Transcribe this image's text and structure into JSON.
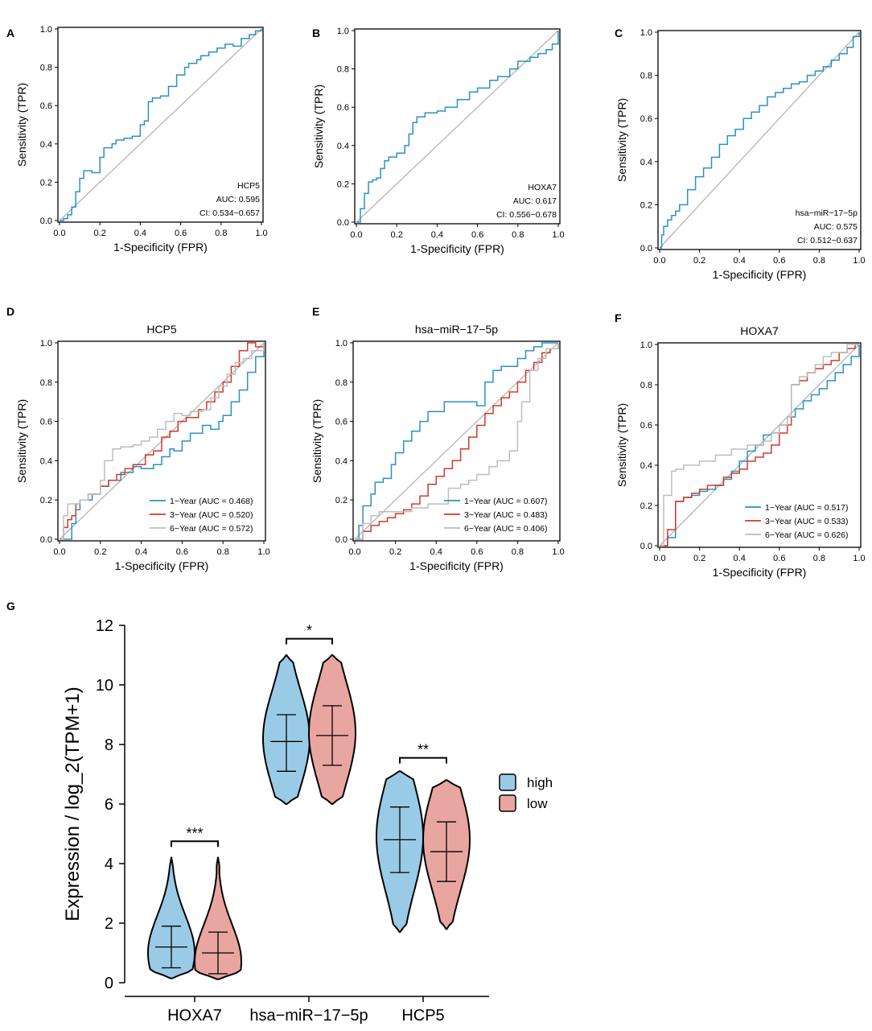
{
  "colors": {
    "blue": "#2a91c8",
    "red": "#d23a2a",
    "gray": "#bdbdbd",
    "diag": "#b5b5b5",
    "violin_high": "#99cbe6",
    "violin_low": "#e9a59f"
  },
  "chart_data": [
    {
      "panel": "A",
      "type": "line",
      "title": "",
      "xlabel": "1-Specificity (FPR)",
      "ylabel": "Sensitivity (TPR)",
      "xlim": [
        0,
        1
      ],
      "ylim": [
        0,
        1
      ],
      "xticks": [
        "0.0",
        "0.2",
        "0.4",
        "0.6",
        "0.8",
        "1.0"
      ],
      "yticks": [
        "0.0",
        "0.2",
        "0.4",
        "0.6",
        "0.8",
        "1.0"
      ],
      "annotation": [
        "HCP5",
        "AUC: 0.595",
        "CI: 0.534−0.657"
      ],
      "legend": [],
      "series": [
        {
          "name": "HCP5",
          "color": "blue",
          "x": [
            0,
            0.02,
            0.04,
            0.06,
            0.08,
            0.1,
            0.12,
            0.14,
            0.16,
            0.2,
            0.22,
            0.26,
            0.28,
            0.32,
            0.36,
            0.4,
            0.42,
            0.44,
            0.46,
            0.5,
            0.54,
            0.58,
            0.62,
            0.64,
            0.68,
            0.7,
            0.74,
            0.78,
            0.82,
            0.86,
            0.9,
            0.94,
            0.97,
            1
          ],
          "y": [
            0,
            0.01,
            0.03,
            0.07,
            0.15,
            0.22,
            0.26,
            0.26,
            0.25,
            0.33,
            0.38,
            0.4,
            0.42,
            0.43,
            0.44,
            0.5,
            0.52,
            0.62,
            0.64,
            0.65,
            0.7,
            0.76,
            0.8,
            0.82,
            0.84,
            0.86,
            0.88,
            0.9,
            0.92,
            0.91,
            0.95,
            0.97,
            0.99,
            1
          ]
        }
      ]
    },
    {
      "panel": "B",
      "type": "line",
      "title": "",
      "xlabel": "1-Specificity (FPR)",
      "ylabel": "Sensitivity (TPR)",
      "xlim": [
        0,
        1
      ],
      "ylim": [
        0,
        1
      ],
      "xticks": [
        "0.0",
        "0.2",
        "0.4",
        "0.6",
        "0.8",
        "1.0"
      ],
      "yticks": [
        "0.0",
        "0.2",
        "0.4",
        "0.6",
        "0.8",
        "1.0"
      ],
      "annotation": [
        "HOXA7",
        "AUC: 0.617",
        "CI: 0.556−0.678"
      ],
      "legend": [],
      "series": [
        {
          "name": "HOXA7",
          "color": "blue",
          "x": [
            0,
            0.02,
            0.04,
            0.06,
            0.08,
            0.1,
            0.12,
            0.14,
            0.16,
            0.18,
            0.2,
            0.24,
            0.26,
            0.28,
            0.3,
            0.34,
            0.4,
            0.44,
            0.5,
            0.56,
            0.6,
            0.66,
            0.7,
            0.76,
            0.8,
            0.86,
            0.9,
            0.94,
            0.97,
            1
          ],
          "y": [
            0,
            0.07,
            0.15,
            0.21,
            0.22,
            0.23,
            0.28,
            0.32,
            0.34,
            0.34,
            0.36,
            0.4,
            0.46,
            0.52,
            0.55,
            0.57,
            0.58,
            0.6,
            0.64,
            0.68,
            0.7,
            0.74,
            0.76,
            0.8,
            0.84,
            0.86,
            0.88,
            0.9,
            0.93,
            1
          ]
        }
      ]
    },
    {
      "panel": "C",
      "type": "line",
      "title": "",
      "xlabel": "1-Specificity (FPR)",
      "ylabel": "Sensitivity (TPR)",
      "xlim": [
        0,
        1
      ],
      "ylim": [
        0,
        1
      ],
      "xticks": [
        "0.0",
        "0.2",
        "0.4",
        "0.6",
        "0.8",
        "1.0"
      ],
      "yticks": [
        "0.0",
        "0.2",
        "0.4",
        "0.6",
        "0.8",
        "1.0"
      ],
      "annotation": [
        "hsa−miR−17−5p",
        "AUC: 0.575",
        "CI: 0.512−0.637"
      ],
      "legend": [],
      "series": [
        {
          "name": "hsa-miR-17-5p",
          "color": "blue",
          "x": [
            0,
            0.01,
            0.02,
            0.04,
            0.06,
            0.08,
            0.1,
            0.14,
            0.18,
            0.22,
            0.26,
            0.3,
            0.34,
            0.38,
            0.42,
            0.46,
            0.5,
            0.54,
            0.58,
            0.62,
            0.66,
            0.7,
            0.74,
            0.78,
            0.82,
            0.86,
            0.9,
            0.94,
            0.97,
            1
          ],
          "y": [
            0,
            0.06,
            0.1,
            0.13,
            0.15,
            0.17,
            0.2,
            0.27,
            0.33,
            0.37,
            0.42,
            0.48,
            0.52,
            0.55,
            0.6,
            0.63,
            0.66,
            0.7,
            0.72,
            0.74,
            0.76,
            0.77,
            0.8,
            0.82,
            0.84,
            0.87,
            0.9,
            0.93,
            0.98,
            1
          ]
        }
      ]
    },
    {
      "panel": "D",
      "type": "line",
      "title": "HCP5",
      "xlabel": "1-Specificity (FPR)",
      "ylabel": "Sensitivity (TPR)",
      "xlim": [
        0,
        1
      ],
      "ylim": [
        0,
        1
      ],
      "xticks": [
        "0.0",
        "0.2",
        "0.4",
        "0.6",
        "0.8",
        "1.0"
      ],
      "yticks": [
        "0.0",
        "0.2",
        "0.4",
        "0.6",
        "0.8",
        "1.0"
      ],
      "annotation": [],
      "legend": [
        "1−Year (AUC = 0.468)",
        "3−Year (AUC = 0.520)",
        "6−Year (AUC = 0.572)"
      ],
      "series": [
        {
          "name": "1-Year",
          "color": "blue",
          "x": [
            0,
            0.06,
            0.08,
            0.1,
            0.16,
            0.2,
            0.24,
            0.3,
            0.36,
            0.4,
            0.46,
            0.5,
            0.54,
            0.56,
            0.6,
            0.64,
            0.7,
            0.74,
            0.78,
            0.8,
            0.84,
            0.88,
            0.92,
            0.96,
            1
          ],
          "y": [
            0,
            0.08,
            0.15,
            0.2,
            0.23,
            0.27,
            0.3,
            0.34,
            0.37,
            0.36,
            0.38,
            0.42,
            0.46,
            0.45,
            0.5,
            0.54,
            0.58,
            0.56,
            0.6,
            0.63,
            0.7,
            0.76,
            0.85,
            0.93,
            1
          ]
        },
        {
          "name": "3-Year",
          "color": "red",
          "x": [
            0,
            0.02,
            0.04,
            0.06,
            0.08,
            0.1,
            0.14,
            0.2,
            0.24,
            0.28,
            0.32,
            0.36,
            0.42,
            0.46,
            0.5,
            0.54,
            0.58,
            0.62,
            0.68,
            0.72,
            0.76,
            0.8,
            0.84,
            0.88,
            0.92,
            0.96,
            1
          ],
          "y": [
            0,
            0.06,
            0.1,
            0.12,
            0.18,
            0.2,
            0.23,
            0.27,
            0.3,
            0.33,
            0.36,
            0.38,
            0.43,
            0.45,
            0.52,
            0.55,
            0.6,
            0.62,
            0.66,
            0.7,
            0.75,
            0.8,
            0.88,
            0.96,
            1,
            0.98,
            1
          ]
        },
        {
          "name": "6-Year",
          "color": "gray",
          "x": [
            0,
            0.02,
            0.04,
            0.1,
            0.14,
            0.2,
            0.22,
            0.26,
            0.3,
            0.36,
            0.4,
            0.44,
            0.48,
            0.52,
            0.56,
            0.6,
            0.64,
            0.7,
            0.74,
            0.78,
            0.82,
            0.86,
            0.9,
            0.94,
            1
          ],
          "y": [
            0,
            0.12,
            0.18,
            0.2,
            0.23,
            0.3,
            0.4,
            0.46,
            0.47,
            0.48,
            0.5,
            0.52,
            0.56,
            0.6,
            0.64,
            0.63,
            0.65,
            0.66,
            0.72,
            0.78,
            0.84,
            0.9,
            0.92,
            0.96,
            1
          ]
        }
      ]
    },
    {
      "panel": "E",
      "type": "line",
      "title": "hsa−miR−17−5p",
      "xlabel": "1-Specificity (FPR)",
      "ylabel": "Sensitivity (TPR)",
      "xlim": [
        0,
        1
      ],
      "ylim": [
        0,
        1
      ],
      "xticks": [
        "0.0",
        "0.2",
        "0.4",
        "0.6",
        "0.8",
        "1.0"
      ],
      "yticks": [
        "0.0",
        "0.2",
        "0.4",
        "0.6",
        "0.8",
        "1.0"
      ],
      "annotation": [],
      "legend": [
        "1−Year (AUC = 0.607)",
        "3−Year (AUC = 0.483)",
        "6−Year (AUC = 0.406)"
      ],
      "series": [
        {
          "name": "1-Year",
          "color": "blue",
          "x": [
            0,
            0.02,
            0.04,
            0.08,
            0.1,
            0.14,
            0.18,
            0.2,
            0.24,
            0.28,
            0.32,
            0.36,
            0.4,
            0.44,
            0.48,
            0.52,
            0.56,
            0.6,
            0.64,
            0.68,
            0.72,
            0.76,
            0.8,
            0.84,
            0.88,
            0.92,
            1
          ],
          "y": [
            0,
            0.07,
            0.17,
            0.23,
            0.29,
            0.31,
            0.38,
            0.44,
            0.5,
            0.55,
            0.6,
            0.65,
            0.65,
            0.7,
            0.7,
            0.7,
            0.7,
            0.68,
            0.8,
            0.86,
            0.88,
            0.88,
            0.92,
            0.96,
            0.98,
            1,
            1
          ]
        },
        {
          "name": "3-Year",
          "color": "red",
          "x": [
            0,
            0.04,
            0.08,
            0.12,
            0.16,
            0.2,
            0.24,
            0.28,
            0.32,
            0.36,
            0.4,
            0.44,
            0.48,
            0.52,
            0.56,
            0.6,
            0.64,
            0.68,
            0.72,
            0.76,
            0.8,
            0.84,
            0.88,
            0.92,
            0.96,
            1
          ],
          "y": [
            0,
            0.04,
            0.07,
            0.09,
            0.11,
            0.13,
            0.15,
            0.18,
            0.22,
            0.28,
            0.32,
            0.36,
            0.4,
            0.46,
            0.52,
            0.58,
            0.64,
            0.68,
            0.72,
            0.75,
            0.8,
            0.86,
            0.9,
            0.95,
            0.97,
            1
          ]
        },
        {
          "name": "6-Year",
          "color": "gray",
          "x": [
            0,
            0.04,
            0.08,
            0.12,
            0.2,
            0.28,
            0.36,
            0.4,
            0.46,
            0.52,
            0.56,
            0.6,
            0.66,
            0.7,
            0.76,
            0.8,
            0.82,
            0.86,
            0.9,
            0.94,
            1
          ],
          "y": [
            0,
            0.08,
            0.12,
            0.14,
            0.14,
            0.16,
            0.18,
            0.18,
            0.26,
            0.28,
            0.3,
            0.33,
            0.37,
            0.4,
            0.45,
            0.6,
            0.7,
            0.86,
            0.92,
            0.97,
            1
          ]
        }
      ]
    },
    {
      "panel": "F",
      "type": "line",
      "title": "HOXA7",
      "xlabel": "1-Specificity (FPR)",
      "ylabel": "Sensitivity (TPR)",
      "xlim": [
        0,
        1
      ],
      "ylim": [
        0,
        1
      ],
      "xticks": [
        "0.0",
        "0.2",
        "0.4",
        "0.6",
        "0.8",
        "1.0"
      ],
      "yticks": [
        "0.0",
        "0.2",
        "0.4",
        "0.6",
        "0.8",
        "1.0"
      ],
      "annotation": [],
      "legend": [
        "1−Year (AUC = 0.517)",
        "3−Year (AUC = 0.533)",
        "6−Year (AUC = 0.626)"
      ],
      "series": [
        {
          "name": "1-Year",
          "color": "blue",
          "x": [
            0,
            0.04,
            0.08,
            0.12,
            0.16,
            0.2,
            0.24,
            0.28,
            0.32,
            0.36,
            0.4,
            0.44,
            0.48,
            0.52,
            0.56,
            0.6,
            0.64,
            0.68,
            0.72,
            0.76,
            0.8,
            0.84,
            0.88,
            0.92,
            0.96,
            1
          ],
          "y": [
            0,
            0.04,
            0.22,
            0.24,
            0.25,
            0.27,
            0.28,
            0.3,
            0.33,
            0.37,
            0.42,
            0.47,
            0.5,
            0.55,
            0.56,
            0.6,
            0.64,
            0.68,
            0.72,
            0.75,
            0.78,
            0.82,
            0.86,
            0.9,
            0.94,
            1
          ]
        },
        {
          "name": "3-Year",
          "color": "red",
          "x": [
            0,
            0.04,
            0.08,
            0.12,
            0.16,
            0.2,
            0.24,
            0.28,
            0.32,
            0.36,
            0.4,
            0.44,
            0.48,
            0.52,
            0.56,
            0.6,
            0.64,
            0.66,
            0.7,
            0.74,
            0.78,
            0.82,
            0.86,
            0.9,
            0.94,
            0.98,
            1
          ],
          "y": [
            0,
            0.08,
            0.22,
            0.24,
            0.26,
            0.28,
            0.3,
            0.3,
            0.34,
            0.36,
            0.38,
            0.42,
            0.44,
            0.46,
            0.5,
            0.56,
            0.6,
            0.8,
            0.82,
            0.86,
            0.88,
            0.9,
            0.92,
            0.96,
            0.98,
            1,
            1
          ]
        },
        {
          "name": "6-Year",
          "color": "gray",
          "x": [
            0,
            0.02,
            0.04,
            0.06,
            0.08,
            0.12,
            0.2,
            0.28,
            0.36,
            0.44,
            0.52,
            0.56,
            0.6,
            0.64,
            0.66,
            0.7,
            0.74,
            0.78,
            0.82,
            0.86,
            0.9,
            0.94,
            1
          ],
          "y": [
            0,
            0.25,
            0.25,
            0.37,
            0.38,
            0.4,
            0.42,
            0.45,
            0.48,
            0.5,
            0.52,
            0.56,
            0.6,
            0.64,
            0.8,
            0.84,
            0.86,
            0.9,
            0.94,
            0.96,
            0.96,
            1,
            1
          ]
        }
      ]
    },
    {
      "panel": "G",
      "type": "violin",
      "title": "",
      "xlabel": "",
      "ylabel": "Expression / log_2(TPM+1)",
      "ylim": [
        0,
        12
      ],
      "yticks": [
        "0",
        "2",
        "4",
        "6",
        "8",
        "10",
        "12"
      ],
      "categories": [
        "HOXA7",
        "hsa−miR−17−5p",
        "HCP5"
      ],
      "significance": [
        "***",
        "*",
        "**"
      ],
      "legend": [
        "high",
        "low"
      ],
      "groups": [
        {
          "category": "HOXA7",
          "group": "high",
          "min": 0.15,
          "max": 4.2,
          "q1": 0.5,
          "median": 1.2,
          "q3": 1.9,
          "peak": 1.0
        },
        {
          "category": "HOXA7",
          "group": "low",
          "min": 0.12,
          "max": 4.2,
          "q1": 0.3,
          "median": 1.0,
          "q3": 1.7,
          "peak": 0.7
        },
        {
          "category": "hsa-miR-17-5p",
          "group": "high",
          "min": 6.0,
          "max": 11.0,
          "q1": 7.1,
          "median": 8.1,
          "q3": 9.0,
          "peak": 8.2
        },
        {
          "category": "hsa-miR-17-5p",
          "group": "low",
          "min": 6.0,
          "max": 11.0,
          "q1": 7.3,
          "median": 8.3,
          "q3": 9.3,
          "peak": 8.4
        },
        {
          "category": "HCP5",
          "group": "high",
          "min": 1.7,
          "max": 7.1,
          "q1": 3.7,
          "median": 4.8,
          "q3": 5.9,
          "peak": 4.9
        },
        {
          "category": "HCP5",
          "group": "low",
          "min": 1.8,
          "max": 6.8,
          "q1": 3.4,
          "median": 4.4,
          "q3": 5.4,
          "peak": 4.8
        }
      ]
    }
  ]
}
